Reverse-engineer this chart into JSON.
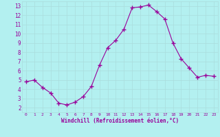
{
  "x": [
    0,
    1,
    2,
    3,
    4,
    5,
    6,
    7,
    8,
    9,
    10,
    11,
    12,
    13,
    14,
    15,
    16,
    17,
    18,
    19,
    20,
    21,
    22,
    23
  ],
  "y": [
    4.8,
    5.0,
    4.2,
    3.6,
    2.5,
    2.3,
    2.6,
    3.2,
    4.3,
    6.6,
    8.5,
    9.3,
    10.5,
    12.8,
    12.9,
    13.1,
    12.4,
    11.6,
    9.0,
    7.3,
    6.3,
    5.3,
    5.5,
    5.4
  ],
  "line_color": "#990099",
  "marker": "+",
  "marker_size": 4,
  "bg_color": "#b3f0f0",
  "grid_color": "#aadddd",
  "xlabel": "Windchill (Refroidissement éolien,°C)",
  "xlabel_color": "#990099",
  "tick_color": "#990099",
  "xlim": [
    -0.5,
    23.5
  ],
  "ylim": [
    1.5,
    13.5
  ],
  "yticks": [
    2,
    3,
    4,
    5,
    6,
    7,
    8,
    9,
    10,
    11,
    12,
    13
  ],
  "xticks": [
    0,
    1,
    2,
    3,
    4,
    5,
    6,
    7,
    8,
    9,
    10,
    11,
    12,
    13,
    14,
    15,
    16,
    17,
    18,
    19,
    20,
    21,
    22,
    23
  ]
}
